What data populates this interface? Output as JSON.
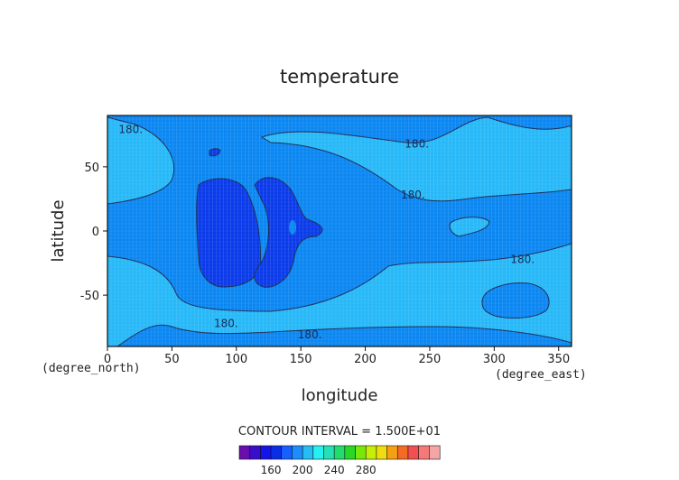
{
  "chart_data": {
    "type": "contour",
    "title": "temperature",
    "xlabel": "longitude",
    "ylabel": "latitude",
    "x_unit": "(degree_east)",
    "y_unit": "(degree_north)",
    "xlim": [
      0,
      360
    ],
    "ylim": [
      -90,
      90
    ],
    "x_ticks": [
      0,
      50,
      100,
      150,
      200,
      250,
      300,
      350
    ],
    "y_ticks": [
      50,
      0,
      -50
    ],
    "contour_interval_label": "CONTOUR INTERVAL = 1.500E+01",
    "contour_labels": [
      {
        "text": "180.",
        "x": 18,
        "y": 79
      },
      {
        "text": "180.",
        "x": 240,
        "y": 68
      },
      {
        "text": "180.",
        "x": 237,
        "y": 28
      },
      {
        "text": "180.",
        "x": 322,
        "y": -22
      },
      {
        "text": "180.",
        "x": 92,
        "y": -72
      },
      {
        "text": "180.",
        "x": 157,
        "y": -81
      }
    ],
    "colorbar": {
      "colors": [
        "#6a0dad",
        "#3a0ec8",
        "#1414ea",
        "#0a2ee6",
        "#1560ff",
        "#1d8cff",
        "#26bdf5",
        "#27f0f0",
        "#24e0b4",
        "#22dc6e",
        "#27d827",
        "#78e80c",
        "#c8ee08",
        "#f0dc10",
        "#f5a012",
        "#f56a24",
        "#f25050",
        "#f47a7a",
        "#f4a6a6"
      ],
      "tick_labels": [
        "160",
        "200",
        "240",
        "280"
      ]
    }
  }
}
